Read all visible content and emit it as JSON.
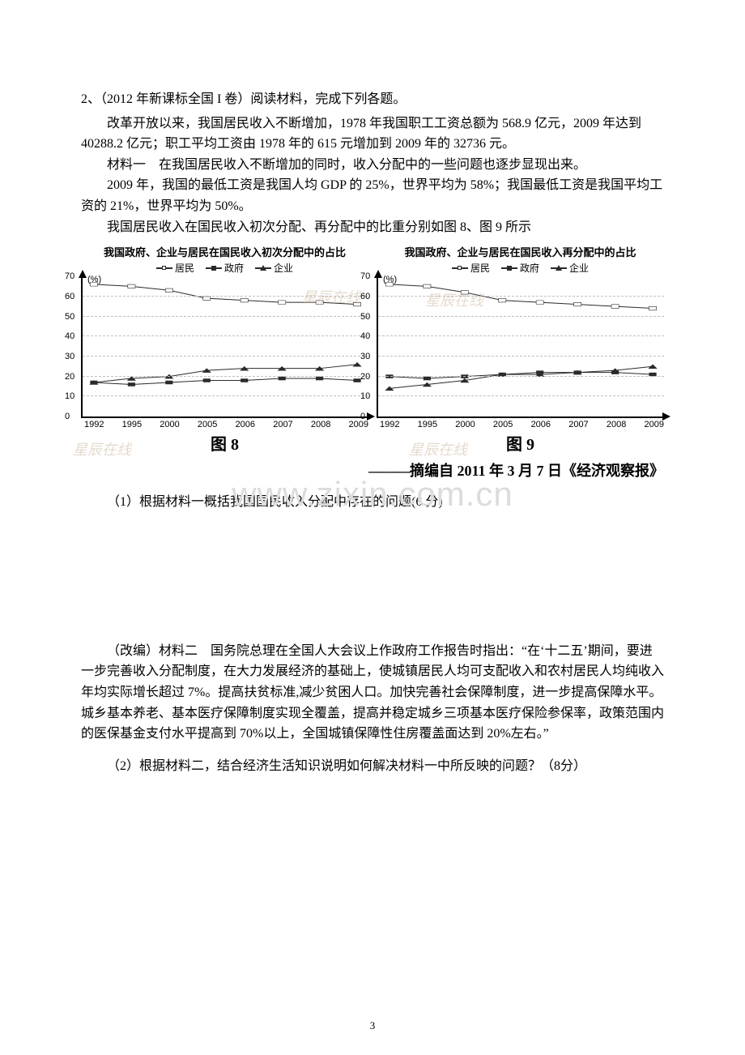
{
  "question_heading": "2、（2012 年新课标全国 I 卷）阅读材料，完成下列各题。",
  "intro_p1": "改革开放以来，我国居民收入不断增加，1978 年我国职工工资总额为 568.9 亿元，2009 年达到 40288.2 亿元；职工平均工资由 1978 年的 615 元增加到 2009 年的 32736 元。",
  "mat1_label": "材料一　在我国居民收入不断增加的同时，收入分配中的一些问题也逐步显现出来。",
  "mat1_body1": "2009 年，我国的最低工资是我国人均 GDP 的 25%，世界平均为 58%；我国最低工资是我国平均工资的 21%，世界平均为 50%。",
  "mat1_body2": "我国居民收入在国民收入初次分配、再分配中的比重分别如图 8、图 9 所示",
  "chart8": {
    "title": "我国政府、企业与居民在国民收入初次分配中的占比",
    "type": "line",
    "y_unit": "(%)",
    "caption": "图 8",
    "ylim": [
      0,
      70
    ],
    "ytick_step": 10,
    "categories": [
      "1992",
      "1995",
      "2000",
      "2005",
      "2006",
      "2007",
      "2008",
      "2009"
    ],
    "legend": [
      {
        "label": "居民",
        "marker": "open-square",
        "color": "#2a2a2a"
      },
      {
        "label": "政府",
        "marker": "square",
        "color": "#2a2a2a"
      },
      {
        "label": "企业",
        "marker": "triangle",
        "color": "#2a2a2a"
      }
    ],
    "series": {
      "resident": [
        66,
        65,
        63,
        59,
        58,
        57,
        57,
        56
      ],
      "gov": [
        17,
        16,
        17,
        18,
        18,
        19,
        19,
        18
      ],
      "ent": [
        17,
        19,
        20,
        23,
        24,
        24,
        24,
        26
      ]
    },
    "colors": {
      "line": "#2a2a2a",
      "grid": "#c9c9c9",
      "bg": "#ffffff"
    }
  },
  "chart9": {
    "title": "我国政府、企业与居民在国民收入再分配中的占比",
    "type": "line",
    "y_unit": "(%)",
    "caption": "图 9",
    "ylim": [
      0,
      70
    ],
    "ytick_step": 10,
    "categories": [
      "1992",
      "1995",
      "2000",
      "2005",
      "2006",
      "2007",
      "2008",
      "2009"
    ],
    "legend": [
      {
        "label": "居民",
        "marker": "open-square",
        "color": "#2a2a2a"
      },
      {
        "label": "政府",
        "marker": "square",
        "color": "#2a2a2a"
      },
      {
        "label": "企业",
        "marker": "triangle",
        "color": "#2a2a2a"
      }
    ],
    "series": {
      "resident": [
        66,
        65,
        62,
        58,
        57,
        56,
        55,
        54
      ],
      "gov": [
        20,
        19,
        20,
        21,
        22,
        22,
        22,
        21
      ],
      "ent": [
        14,
        16,
        18,
        21,
        21,
        22,
        23,
        25
      ]
    },
    "colors": {
      "line": "#2a2a2a",
      "grid": "#c9c9c9",
      "bg": "#ffffff"
    }
  },
  "source_line_dash": "———",
  "source_line_text": "摘编自 2011 年 3 月 7 日《经济观察报》",
  "sub_q1": "（1）根据材料一概括我国国民收入分配中存在的问题(6 分)",
  "mat2": "（改编）材料二　国务院总理在全国人大会议上作政府工作报告时指出：“在‘十二五’期间，要进一步完善收入分配制度，在大力发展经济的基础上，使城镇居民人均可支配收入和农村居民人均纯收入年均实际增长超过 7%。提高扶贫标准,减少贫困人口。加快完善社会保障制度，进一步提高保障水平。城乡基本养老、基本医疗保障制度实现全覆盖，提高并稳定城乡三项基本医疗保险参保率，政策范围内的医保基金支付水平提高到 70%以上，全国城镇保障性住房覆盖面达到 20%左右。”",
  "sub_q2": "（2）根据材料二，结合经济生活知识说明如何解决材料一中所反映的问题？（8分）",
  "page_number": "3",
  "watermark_center": "www.zixin.com.cn",
  "wm_small": "星辰在线"
}
